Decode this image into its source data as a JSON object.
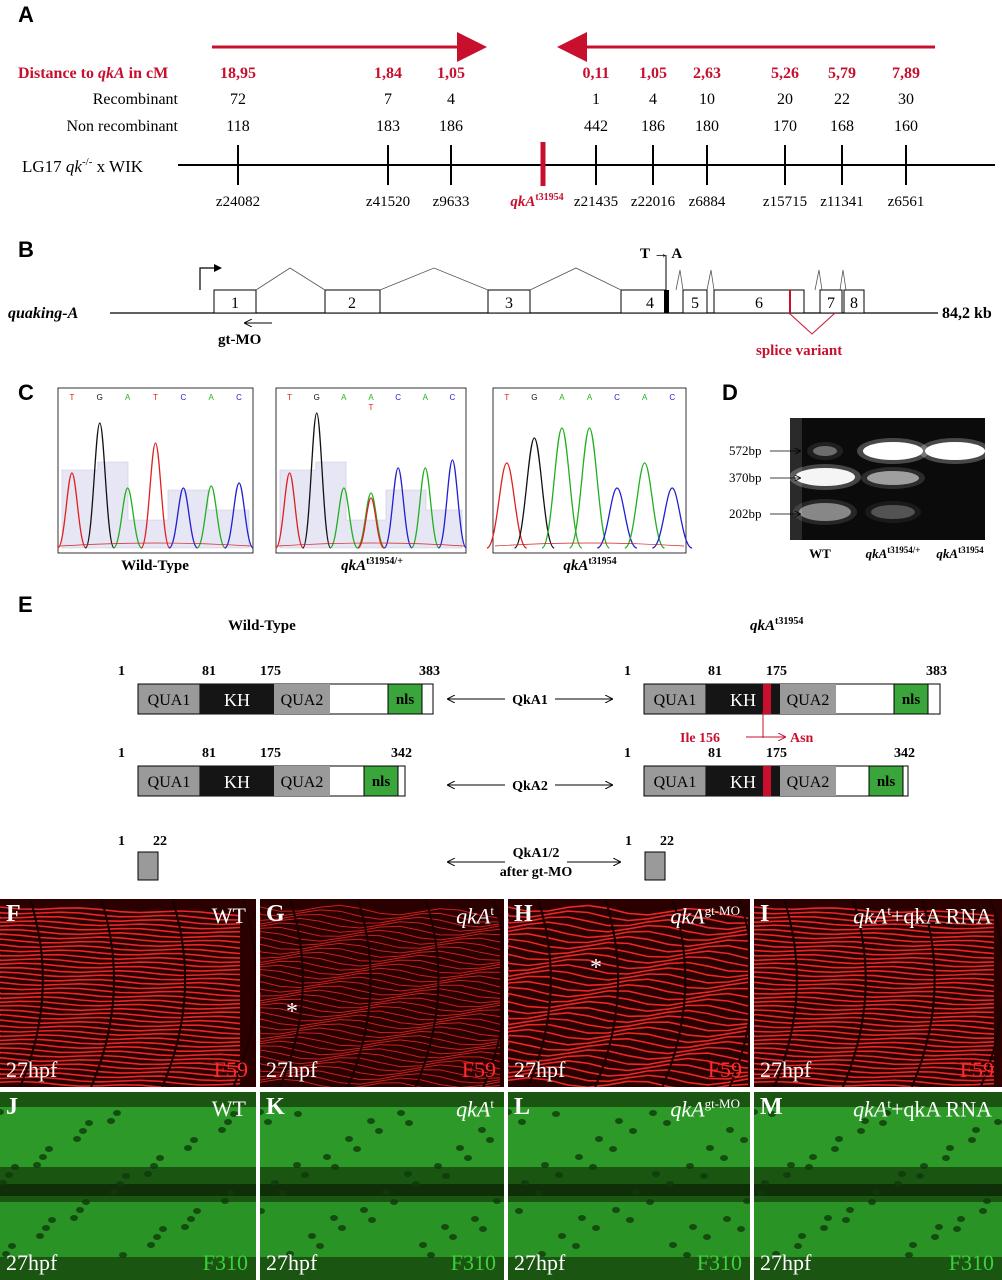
{
  "panel_labels": {
    "a": "A",
    "b": "B",
    "c": "C",
    "d": "D",
    "e": "E",
    "f": "F",
    "g": "G",
    "h": "H",
    "i": "I",
    "j": "J",
    "k": "K",
    "l": "L",
    "m": "M"
  },
  "panelA": {
    "row_distance_label": "Distance to qkA in cM",
    "row_recomb_label": "Recombinant",
    "row_nonrecomb_label": "Non recombinant",
    "cross_label": "LG17 qk-/- x WIK",
    "mutant_marker": "qkAt31954",
    "markers": [
      {
        "name": "z24082",
        "distance": "18,95",
        "recombinant": "72",
        "non_recombinant": "118"
      },
      {
        "name": "z41520",
        "distance": "1,84",
        "recombinant": "7",
        "non_recombinant": "183"
      },
      {
        "name": "z9633",
        "distance": "1,05",
        "recombinant": "4",
        "non_recombinant": "186"
      },
      {
        "name": "z21435",
        "distance": "0,11",
        "recombinant": "1",
        "non_recombinant": "442"
      },
      {
        "name": "z22016",
        "distance": "1,05",
        "recombinant": "4",
        "non_recombinant": "186"
      },
      {
        "name": "z6884",
        "distance": "2,63",
        "recombinant": "10",
        "non_recombinant": "180"
      },
      {
        "name": "z15715",
        "distance": "5,26",
        "recombinant": "20",
        "non_recombinant": "170"
      },
      {
        "name": "z11341",
        "distance": "5,79",
        "recombinant": "22",
        "non_recombinant": "168"
      },
      {
        "name": "z6561",
        "distance": "7,89",
        "recombinant": "30",
        "non_recombinant": "160"
      }
    ],
    "accent_color": "#c8102e"
  },
  "panelB": {
    "gene": "quaking-A",
    "length": "84,2 kb",
    "exons": [
      "1",
      "2",
      "3",
      "4",
      "5",
      "6",
      "7",
      "8"
    ],
    "mutation": "T → A",
    "mo": "gt-MO",
    "splice": "splice variant"
  },
  "panelC": {
    "traces": [
      {
        "title": "Wild-Type",
        "bases": [
          "T",
          "G",
          "A",
          "T",
          "C",
          "A",
          "C"
        ]
      },
      {
        "title": "qkAt31954/+",
        "bases": [
          "T",
          "G",
          "A",
          "A",
          "C",
          "A",
          "C"
        ],
        "extra": "T"
      },
      {
        "title": "qkAt31954",
        "bases": [
          "T",
          "G",
          "A",
          "A",
          "C",
          "A",
          "C"
        ]
      }
    ]
  },
  "panelD": {
    "sizes": [
      "572bp",
      "370bp",
      "202bp"
    ],
    "lanes": [
      "WT",
      "qkAt31954/+",
      "qkAt31954"
    ]
  },
  "panelE": {
    "wt_title": "Wild-Type",
    "mut_title": "qkAt31954",
    "qka1": {
      "name": "QkA1",
      "start": "1",
      "kh_start": "81",
      "kh_end": "175",
      "end": "383"
    },
    "qka2": {
      "name": "QkA2",
      "start": "1",
      "kh_start": "81",
      "kh_end": "175",
      "end": "342"
    },
    "gtmo": {
      "name": "QkA1/2",
      "sub": "after gt-MO",
      "start": "1",
      "end": "22"
    },
    "domains": {
      "qua1": "QUA1",
      "kh": "KH",
      "qua2": "QUA2",
      "nls": "nls"
    },
    "mutation": "Ile 156 → Asn"
  },
  "images": {
    "age": "27hpf",
    "red_marker": "F59",
    "green_marker": "F310",
    "red_color": "#ff2a2a",
    "green_color": "#3ad23a",
    "conditions": [
      {
        "id": "F",
        "label": "WT"
      },
      {
        "id": "G",
        "label": "qkAt"
      },
      {
        "id": "H",
        "label": "qkAgt-MO"
      },
      {
        "id": "I",
        "label": "qkAt+qkA RNA"
      },
      {
        "id": "J",
        "label": "WT"
      },
      {
        "id": "K",
        "label": "qkAt"
      },
      {
        "id": "L",
        "label": "qkAgt-MO"
      },
      {
        "id": "M",
        "label": "qkAt+qkA RNA"
      }
    ]
  }
}
